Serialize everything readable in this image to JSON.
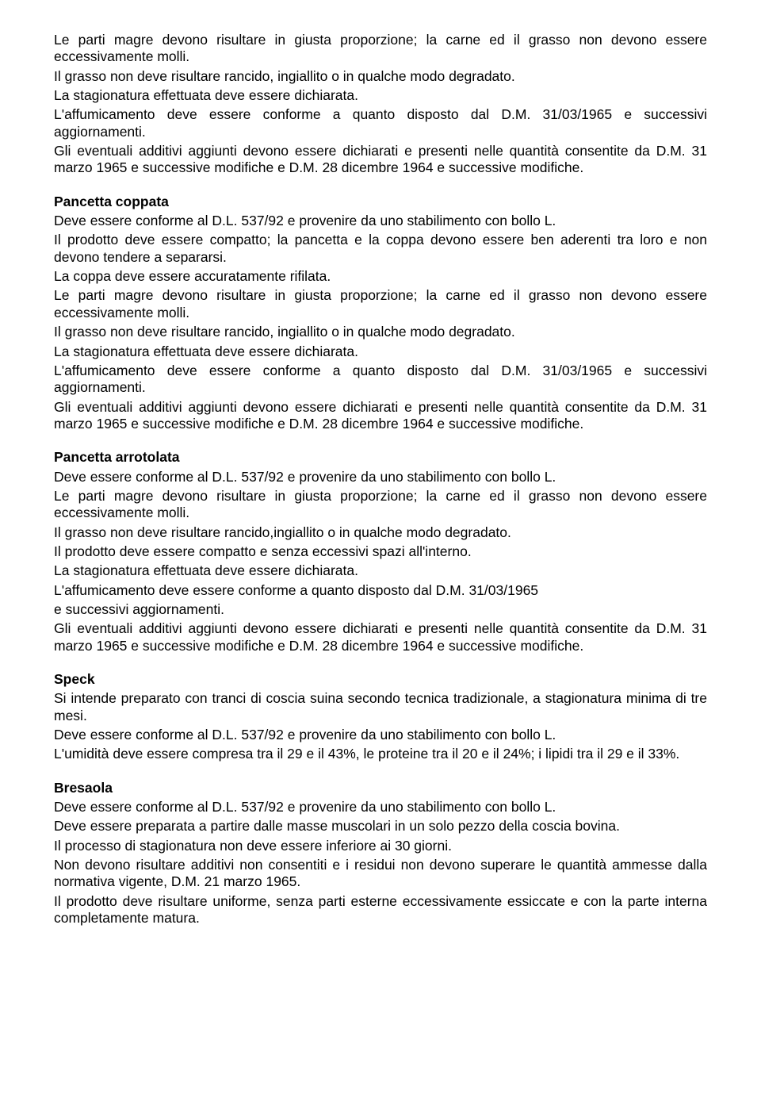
{
  "colors": {
    "background": "#ffffff",
    "text": "#000000"
  },
  "typography": {
    "font_family": "Arial",
    "font_size_pt": 13,
    "line_height": 1.22,
    "heading_weight": "bold",
    "text_align": "justify"
  },
  "intro": {
    "p1": "Le parti magre devono risultare in giusta proporzione; la carne ed il grasso non devono essere eccessivamente molli.",
    "p2": "Il grasso non deve risultare rancido, ingiallito o in qualche modo degradato.",
    "p3": "La stagionatura effettuata deve essere dichiarata.",
    "p4": "L'affumicamento deve essere conforme a quanto disposto dal D.M. 31/03/1965 e successivi aggiornamenti.",
    "p5": "Gli eventuali additivi aggiunti devono essere dichiarati e presenti nelle quantità consentite da D.M. 31 marzo 1965 e successive modifiche e D.M. 28 dicembre 1964 e successive modifiche."
  },
  "sec1": {
    "title": "Pancetta coppata",
    "p1": "Deve essere conforme al D.L. 537/92 e provenire da uno stabilimento con bollo L.",
    "p2": "Il prodotto deve essere compatto; la pancetta e la coppa devono essere ben aderenti tra loro e non devono tendere a separarsi.",
    "p3": "La coppa deve essere accuratamente rifilata.",
    "p4": "Le parti magre devono risultare in giusta proporzione; la carne ed il grasso non devono essere eccessivamente molli.",
    "p5": "Il grasso non deve risultare rancido, ingiallito o in qualche modo degradato.",
    "p6": "La stagionatura effettuata deve essere dichiarata.",
    "p7": "L'affumicamento deve essere conforme a quanto disposto dal D.M. 31/03/1965 e successivi aggiornamenti.",
    "p8": "Gli eventuali additivi aggiunti devono essere dichiarati e presenti nelle quantità consentite da D.M. 31 marzo 1965 e successive modifiche e D.M. 28 dicembre 1964 e successive modifiche."
  },
  "sec2": {
    "title": "Pancetta arrotolata",
    "p1": "Deve essere conforme al D.L. 537/92 e provenire da uno stabilimento con bollo L.",
    "p2": "Le parti magre devono risultare in giusta proporzione; la carne ed il grasso non devono essere eccessivamente molli.",
    "p3": "Il grasso non deve risultare rancido,ingiallito o in qualche modo degradato.",
    "p4": "Il prodotto deve essere compatto e senza eccessivi spazi all'interno.",
    "p5": "La stagionatura effettuata deve essere dichiarata.",
    "p6": "L'affumicamento deve essere conforme a quanto disposto dal D.M. 31/03/1965",
    "p7": "e successivi aggiornamenti.",
    "p8": "Gli eventuali additivi aggiunti devono essere dichiarati e presenti nelle quantità consentite da D.M. 31 marzo 1965 e successive modifiche e D.M. 28 dicembre 1964 e successive modifiche."
  },
  "sec3": {
    "title": "Speck",
    "p1": "Si intende preparato con tranci di coscia suina secondo tecnica tradizionale, a stagionatura minima di tre mesi.",
    "p2": "Deve essere conforme al D.L. 537/92 e provenire da uno stabilimento con bollo L.",
    "p3": "L'umidità deve essere compresa tra il 29 e il 43%, le proteine tra il 20 e il 24%; i lipidi tra il 29 e il 33%."
  },
  "sec4": {
    "title": "Bresaola",
    "p1": "Deve essere conforme al D.L. 537/92 e provenire da uno stabilimento con bollo L.",
    "p2": "Deve essere preparata a partire dalle masse muscolari in un solo pezzo della coscia bovina.",
    "p3": "Il processo di stagionatura non deve essere inferiore ai 30 giorni.",
    "p4": "Non devono risultare additivi non consentiti e i residui non devono superare le quantità ammesse dalla normativa vigente, D.M. 21 marzo 1965.",
    "p5": "Il prodotto deve risultare uniforme, senza parti esterne eccessivamente essiccate e con la parte interna completamente matura."
  }
}
